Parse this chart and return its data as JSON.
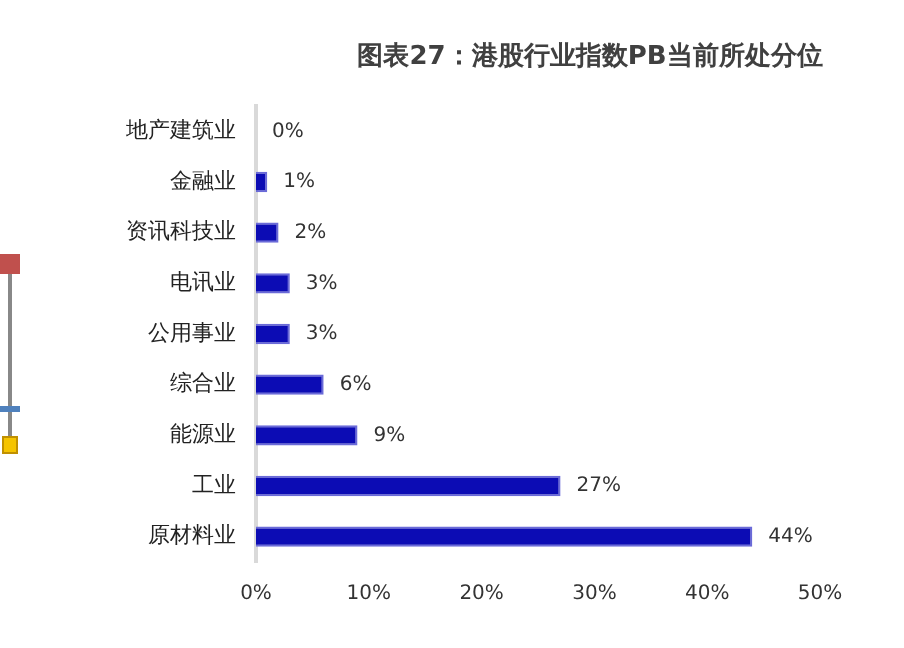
{
  "chart_data": {
    "type": "bar",
    "orientation": "horizontal",
    "title": "图表27：港股行业指数PB当前所处分位",
    "categories": [
      "地产建筑业",
      "金融业",
      "资讯科技业",
      "电讯业",
      "公用事业",
      "综合业",
      "能源业",
      "工业",
      "原材料业"
    ],
    "values": [
      0,
      1,
      2,
      3,
      3,
      6,
      9,
      27,
      44
    ],
    "value_labels": [
      "0%",
      "1%",
      "2%",
      "3%",
      "3%",
      "6%",
      "9%",
      "27%",
      "44%"
    ],
    "color": "#0c0cb4",
    "xlim": [
      0,
      50
    ],
    "xticks": [
      {
        "value": 0,
        "label": "0%"
      },
      {
        "value": 10,
        "label": "10%"
      },
      {
        "value": 20,
        "label": "20%"
      },
      {
        "value": 30,
        "label": "30%"
      },
      {
        "value": 40,
        "label": "40%"
      },
      {
        "value": 50,
        "label": "50%"
      }
    ],
    "grid": false,
    "legend": false
  }
}
